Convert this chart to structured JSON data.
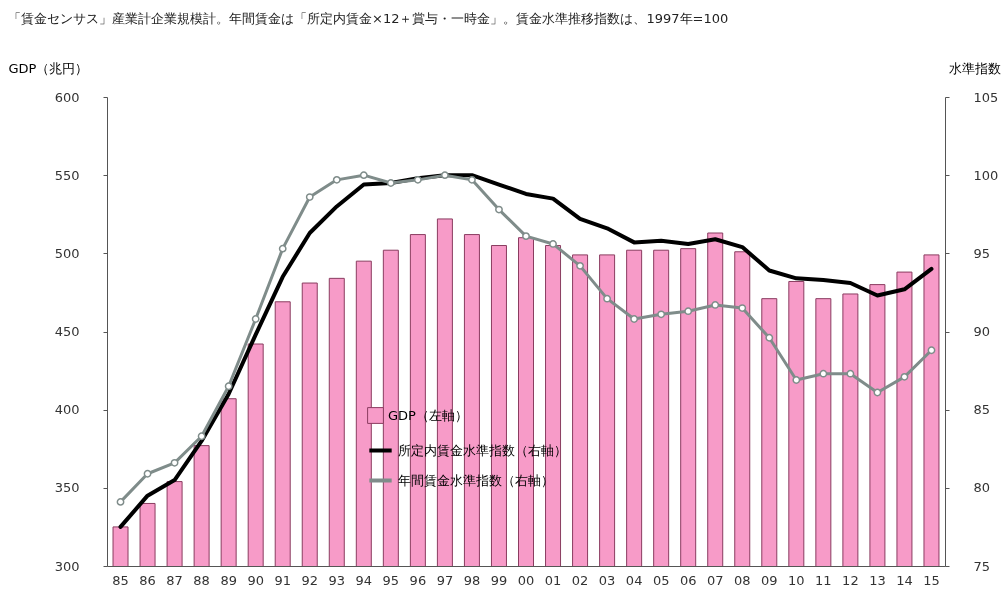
{
  "chart_data": {
    "type": "bar",
    "title": "「賃金センサス」産業計企業規模計。年間賃金は「所定内賃金×12＋賞与・一時金」。賃金水準推移指数は、1997年=100",
    "ylabel": "GDP（兆円）",
    "y2label": "水準指数",
    "categories": [
      "85",
      "86",
      "87",
      "88",
      "89",
      "90",
      "91",
      "92",
      "93",
      "94",
      "95",
      "96",
      "97",
      "98",
      "99",
      "00",
      "01",
      "02",
      "03",
      "04",
      "05",
      "06",
      "07",
      "08",
      "09",
      "10",
      "11",
      "12",
      "13",
      "14",
      "15"
    ],
    "series": [
      {
        "name": "GDP（左軸）",
        "color": "#f79bc8",
        "values": [
          325,
          340,
          354,
          377,
          407,
          442,
          469,
          481,
          484,
          495,
          502,
          512,
          522,
          512,
          505,
          510,
          505,
          499,
          499,
          502,
          502,
          503,
          513,
          501,
          471,
          482,
          471,
          474,
          480,
          488,
          499
        ]
      },
      {
        "name": "所定内賃金水準指数（右軸）",
        "type": "line",
        "axis": "y2",
        "color": "#000000",
        "marker": "none",
        "values": [
          77.5,
          79.5,
          80.5,
          83,
          86,
          89.8,
          93.5,
          96.3,
          98,
          99.4,
          99.5,
          99.8,
          100,
          100,
          99.4,
          98.8,
          98.5,
          97.2,
          96.6,
          95.7,
          95.8,
          95.6,
          95.9,
          95.4,
          93.9,
          93.4,
          93.3,
          93.1,
          92.3,
          92.7,
          94
        ]
      },
      {
        "name": "年間賃金水準指数（右軸）",
        "type": "line",
        "axis": "y2",
        "color": "#7f8c8a",
        "marker": "circle",
        "values": [
          79.1,
          80.9,
          81.6,
          83.3,
          86.5,
          90.8,
          95.3,
          98.6,
          99.7,
          100,
          99.5,
          99.7,
          100,
          99.7,
          97.8,
          96.1,
          95.6,
          94.2,
          92.1,
          90.8,
          91.1,
          91.3,
          91.7,
          91.5,
          89.6,
          86.9,
          87.3,
          87.3,
          86.1,
          87.1,
          88.8
        ]
      }
    ],
    "ylim": [
      300,
      600
    ],
    "yticks": [
      300,
      350,
      400,
      450,
      500,
      550,
      600
    ],
    "y2lim": [
      75,
      105
    ],
    "y2ticks": [
      75,
      80,
      85,
      90,
      95,
      100,
      105
    ],
    "legend": "bottom",
    "grid": false
  }
}
